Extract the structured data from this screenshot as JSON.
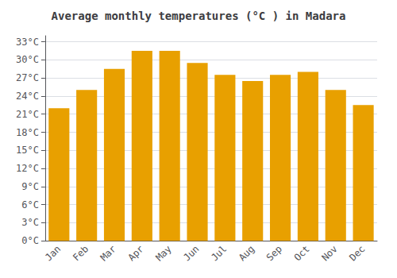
{
  "chart_data": {
    "type": "bar",
    "title": "Average monthly temperatures (°C ) in Madara",
    "categories": [
      "Jan",
      "Feb",
      "Mar",
      "Apr",
      "May",
      "Jun",
      "Jul",
      "Aug",
      "Sep",
      "Oct",
      "Nov",
      "Dec"
    ],
    "values": [
      22.0,
      25.0,
      28.5,
      31.5,
      31.5,
      29.5,
      27.5,
      26.5,
      27.5,
      28.0,
      25.0,
      22.5
    ],
    "color": "#E8A000",
    "ylim": [
      0,
      34
    ],
    "yticks": [
      {
        "value": 0,
        "label": "0°C"
      },
      {
        "value": 3,
        "label": "3°C"
      },
      {
        "value": 6,
        "label": "6°C"
      },
      {
        "value": 9,
        "label": "9°C"
      },
      {
        "value": 12,
        "label": "12°C"
      },
      {
        "value": 15,
        "label": "15°C"
      },
      {
        "value": 18,
        "label": "18°C"
      },
      {
        "value": 21,
        "label": "21°C"
      },
      {
        "value": 24,
        "label": "24°C"
      },
      {
        "value": 27,
        "label": "27°C"
      },
      {
        "value": 30,
        "label": "30°C"
      },
      {
        "value": 33,
        "label": "33°C"
      }
    ],
    "grid": true
  }
}
